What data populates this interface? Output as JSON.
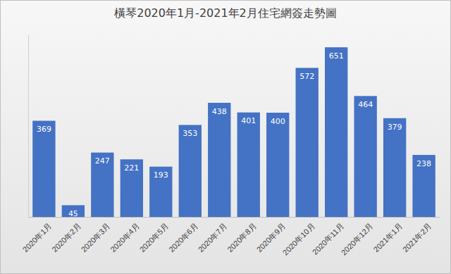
{
  "chart_data": {
    "type": "bar",
    "title": "橫琴2020年1月-2021年2月住宅網簽走勢圖",
    "categories": [
      "2020年1月",
      "2020年2月",
      "2020年3月",
      "2020年4月",
      "2020年5月",
      "2020年6月",
      "2020年7月",
      "2020年8月",
      "2020年9月",
      "2020年10月",
      "2020年11月",
      "2020年12月",
      "2021年1月",
      "2021年2月"
    ],
    "values": [
      369,
      45,
      247,
      221,
      193,
      353,
      438,
      401,
      400,
      572,
      651,
      464,
      379,
      238
    ],
    "color": "#4472c4",
    "ylim": [
      0,
      700
    ],
    "grid": false,
    "data_labels": true,
    "tick_labels": "x"
  }
}
